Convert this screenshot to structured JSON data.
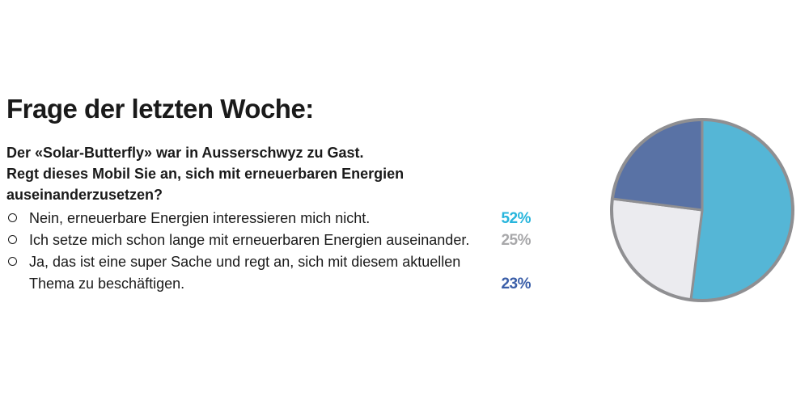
{
  "heading": "Frage der letzten Woche:",
  "question_lines": [
    "Der «Solar-Butterfly» war in Ausserschwyz zu Gast.",
    "Regt dieses Mobil Sie an, sich mit erneuerbaren Energien",
    "auseinanderzusetzen?"
  ],
  "answers": [
    {
      "lines": [
        "Nein, erneuerbare Energien interessieren mich nicht."
      ],
      "percent": "52%",
      "color": "#27b5dc"
    },
    {
      "lines": [
        "Ich setze mich schon lange mit erneuerbaren Energien auseinander."
      ],
      "percent": "25%",
      "color": "#a8a8aa"
    },
    {
      "lines": [
        "Ja, das ist eine super Sache und regt an, sich mit diesem aktuellen",
        "Thema zu beschäftigen."
      ],
      "percent": "23%",
      "color": "#3a5ea8"
    }
  ],
  "chart_data": {
    "type": "pie",
    "categories": [
      "Nein, erneuerbare Energien interessieren mich nicht.",
      "Ich setze mich schon lange mit erneuerbaren Energien auseinander.",
      "Ja, das ist eine super Sache und regt an, sich mit diesem aktuellen Thema zu beschäftigen."
    ],
    "values": [
      52,
      25,
      23
    ],
    "colors": [
      "#55b6d6",
      "#ebebef",
      "#5972a5"
    ],
    "border_color": "#8f8f92",
    "title": "Frage der letzten Woche:"
  }
}
